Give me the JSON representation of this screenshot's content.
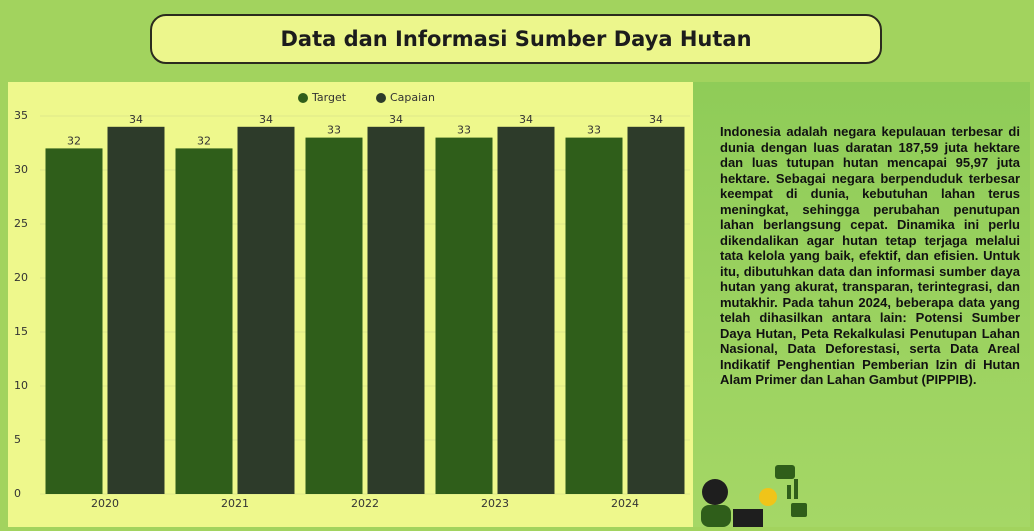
{
  "header": {
    "title": "Data dan Informasi Sumber Daya Hutan"
  },
  "chart_data": {
    "type": "bar",
    "categories": [
      "2020",
      "2021",
      "2022",
      "2023",
      "2024"
    ],
    "series": [
      {
        "name": "Target",
        "color": "#2f5e1a",
        "values": [
          32,
          32,
          33,
          33,
          33
        ]
      },
      {
        "name": "Capaian",
        "color": "#2d3b2a",
        "values": [
          34,
          34,
          34,
          34,
          34
        ]
      }
    ],
    "ylim": [
      0,
      35
    ],
    "yticks": [
      0,
      5,
      10,
      15,
      20,
      25,
      30,
      35
    ],
    "grid": true,
    "legend": "top"
  },
  "panel": {
    "text": "Indonesia adalah negara kepulauan terbesar di dunia dengan luas daratan 187,59 juta hektare dan luas tutupan hutan mencapai 95,97 juta hektare. Sebagai negara berpenduduk terbesar keempat di dunia, kebutuhan lahan terus meningkat, sehingga perubahan penutupan lahan berlangsung cepat. Dinamika ini perlu dikendalikan agar hutan tetap terjaga melalui tata kelola yang baik, efektif, dan efisien. Untuk itu, dibutuhkan data dan informasi sumber daya hutan yang akurat, transparan, terintegrasi, dan mutakhir. Pada tahun 2024, beberapa data yang telah dihasilkan antara lain: Potensi Sumber Daya Hutan, Peta Rekalkulasi Penutupan Lahan Nasional, Data Deforestasi, serta Data Areal Indikatif Penghentian Pemberian Izin di Hutan Alam Primer dan Lahan Gambut (PIPPIB)."
  }
}
